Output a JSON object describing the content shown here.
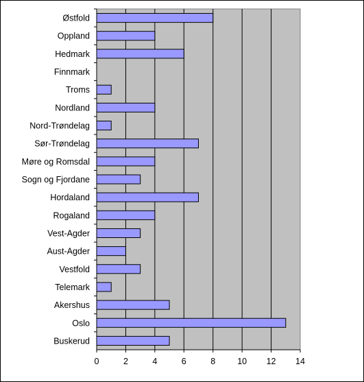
{
  "chart_data": {
    "type": "bar",
    "orientation": "horizontal",
    "title": "",
    "xlabel": "",
    "ylabel": "",
    "categories": [
      "Østfold",
      "Oppland",
      "Hedmark",
      "Finnmark",
      "Troms",
      "Nordland",
      "Nord-Trøndelag",
      "Sør-Trøndelag",
      "Møre og Romsdal",
      "Sogn og Fjordane",
      "Hordaland",
      "Rogaland",
      "Vest-Agder",
      "Aust-Agder",
      "Vestfold",
      "Telemark",
      "Akershus",
      "Oslo",
      "Buskerud"
    ],
    "values": [
      8,
      4,
      6,
      0,
      1,
      4,
      1,
      7,
      4,
      3,
      7,
      4,
      3,
      2,
      3,
      1,
      5,
      13,
      5
    ],
    "xlim": [
      0,
      14
    ],
    "xticks": [
      0,
      2,
      4,
      6,
      8,
      10,
      12,
      14
    ],
    "grid": true,
    "legend": "none",
    "colors": {
      "bar_fill": "#9999ff",
      "bar_stroke": "#000000",
      "plot_background": "#c0c0c0",
      "gridline": "#000000"
    }
  }
}
